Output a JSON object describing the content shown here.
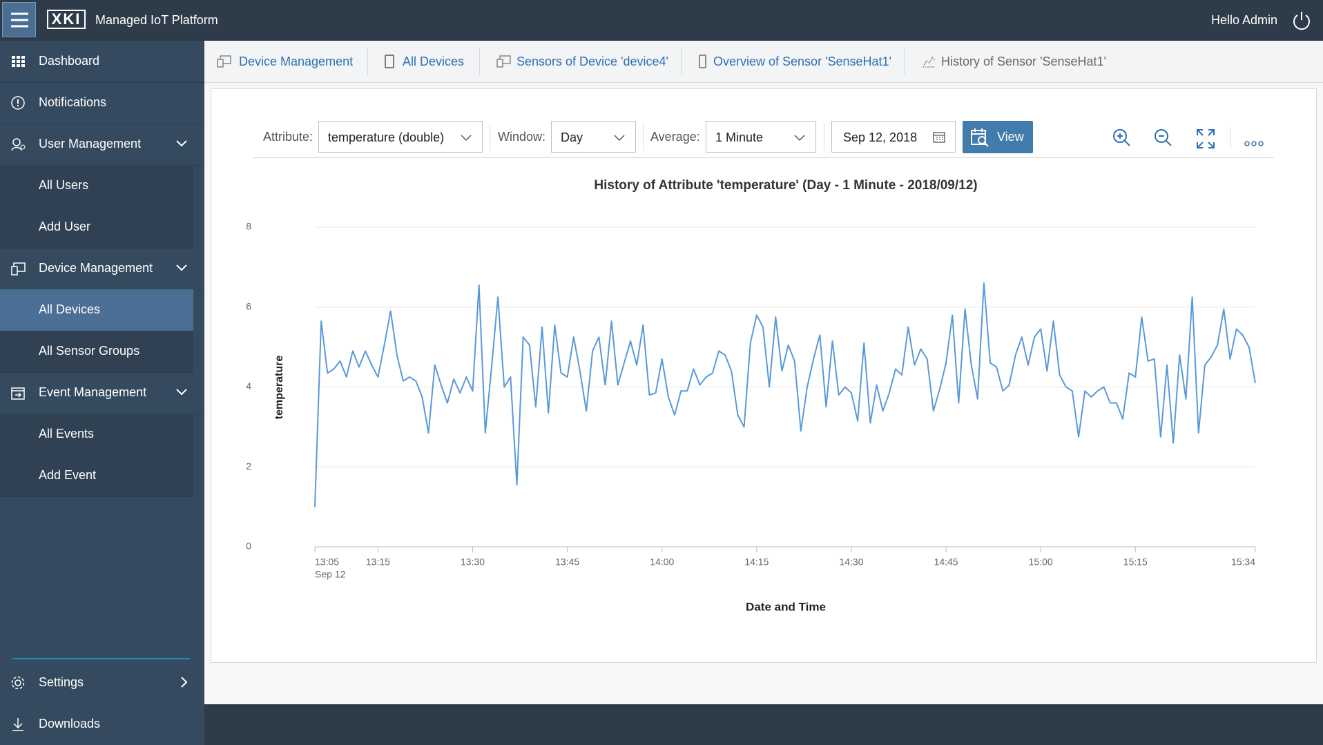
{
  "header": {
    "logo": "XKI",
    "title": "Managed IoT Platform",
    "greeting": "Hello Admin"
  },
  "sidebar": {
    "items": [
      "Dashboard",
      "Notifications",
      "User Management",
      "All Users",
      "Add User",
      "Device Management",
      "All Devices",
      "All Sensor Groups",
      "Event Management",
      "All Events",
      "Add Event"
    ],
    "footer": [
      "Settings",
      "Downloads"
    ]
  },
  "breadcrumbs": [
    "Device Management",
    "All Devices",
    "Sensors of Device 'device4'",
    "Overview of Sensor 'SenseHat1'",
    "History of Sensor 'SenseHat1'"
  ],
  "toolbar": {
    "attribute_label": "Attribute:",
    "attribute": "temperature (double)",
    "window_label": "Window:",
    "window": "Day",
    "average_label": "Average:",
    "average": "1 Minute",
    "date": "Sep 12, 2018",
    "button": "View"
  },
  "chart_data": {
    "type": "line",
    "title": "History of Attribute 'temperature' (Day - 1 Minute - 2018/09/12)",
    "x_label": "Date and Time",
    "y_label": "temperature",
    "color": "#5899da",
    "grid": true,
    "ylim": [
      0,
      8
    ],
    "yticks": [
      0,
      2,
      4,
      6,
      8
    ],
    "xticks": [
      "13:05",
      "13:15",
      "13:30",
      "13:45",
      "14:00",
      "14:15",
      "14:30",
      "14:45",
      "15:00",
      "15:15",
      "15:34"
    ],
    "x_date": "Sep 12",
    "x": [
      "13:05",
      "13:06",
      "13:07",
      "13:08",
      "13:09",
      "13:10",
      "13:11",
      "13:12",
      "13:13",
      "13:14",
      "13:15",
      "13:16",
      "13:17",
      "13:18",
      "13:19",
      "13:20",
      "13:21",
      "13:22",
      "13:23",
      "13:24",
      "13:25",
      "13:26",
      "13:27",
      "13:28",
      "13:29",
      "13:30",
      "13:31",
      "13:32",
      "13:33",
      "13:34",
      "13:35",
      "13:36",
      "13:37",
      "13:38",
      "13:39",
      "13:40",
      "13:41",
      "13:42",
      "13:43",
      "13:44",
      "13:45",
      "13:46",
      "13:47",
      "13:48",
      "13:49",
      "13:50",
      "13:51",
      "13:52",
      "13:53",
      "13:54",
      "13:55",
      "13:56",
      "13:57",
      "13:58",
      "13:59",
      "14:00",
      "14:01",
      "14:02",
      "14:03",
      "14:04",
      "14:05",
      "14:06",
      "14:07",
      "14:08",
      "14:09",
      "14:10",
      "14:11",
      "14:12",
      "14:13",
      "14:14",
      "14:15",
      "14:16",
      "14:17",
      "14:18",
      "14:19",
      "14:20",
      "14:21",
      "14:22",
      "14:23",
      "14:24",
      "14:25",
      "14:26",
      "14:27",
      "14:28",
      "14:29",
      "14:30",
      "14:31",
      "14:32",
      "14:33",
      "14:34",
      "14:35",
      "14:36",
      "14:37",
      "14:38",
      "14:39",
      "14:40",
      "14:41",
      "14:42",
      "14:43",
      "14:44",
      "14:45",
      "14:46",
      "14:47",
      "14:48",
      "14:49",
      "14:50",
      "14:51",
      "14:52",
      "14:53",
      "14:54",
      "14:55",
      "14:56",
      "14:57",
      "14:58",
      "14:59",
      "15:00",
      "15:01",
      "15:02",
      "15:03",
      "15:04",
      "15:05",
      "15:06",
      "15:07",
      "15:08",
      "15:09",
      "15:10",
      "15:11",
      "15:12",
      "15:13",
      "15:14",
      "15:15",
      "15:16",
      "15:17",
      "15:18",
      "15:19",
      "15:20",
      "15:21",
      "15:22",
      "15:23",
      "15:24",
      "15:25",
      "15:26",
      "15:27",
      "15:28",
      "15:29",
      "15:30",
      "15:31",
      "15:32",
      "15:33",
      "15:34"
    ],
    "values": [
      1.0,
      5.65,
      4.35,
      4.45,
      4.65,
      4.25,
      4.9,
      4.5,
      4.9,
      4.55,
      4.25,
      5.05,
      5.9,
      4.8,
      4.15,
      4.25,
      4.15,
      3.75,
      2.85,
      4.55,
      4.05,
      3.6,
      4.2,
      3.85,
      4.25,
      3.9,
      6.55,
      2.85,
      4.5,
      6.25,
      4.0,
      4.25,
      1.55,
      5.25,
      5.05,
      3.5,
      5.5,
      3.35,
      5.55,
      4.35,
      4.25,
      5.25,
      4.4,
      3.4,
      4.9,
      5.25,
      4.05,
      5.65,
      4.05,
      4.6,
      5.15,
      4.55,
      5.55,
      3.8,
      3.85,
      4.7,
      3.75,
      3.3,
      3.9,
      3.9,
      4.45,
      4.05,
      4.25,
      4.35,
      4.9,
      4.8,
      4.4,
      3.3,
      3.0,
      5.1,
      5.8,
      5.5,
      4.0,
      5.75,
      4.4,
      5.05,
      4.65,
      2.9,
      4.0,
      4.7,
      5.3,
      3.5,
      5.15,
      3.8,
      4.0,
      3.85,
      3.15,
      5.1,
      3.1,
      4.05,
      3.4,
      3.85,
      4.45,
      4.3,
      5.5,
      4.55,
      4.95,
      4.7,
      3.4,
      3.95,
      4.6,
      5.8,
      3.6,
      5.95,
      4.55,
      3.7,
      6.6,
      4.6,
      4.5,
      3.9,
      4.05,
      4.8,
      5.25,
      4.55,
      5.25,
      5.45,
      4.4,
      5.65,
      4.3,
      4.0,
      3.9,
      2.75,
      3.9,
      3.75,
      3.9,
      4.0,
      3.6,
      3.6,
      3.2,
      4.35,
      4.25,
      5.75,
      4.65,
      4.7,
      2.75,
      4.55,
      2.6,
      4.8,
      3.7,
      6.25,
      2.85,
      4.55,
      4.75,
      5.05,
      5.95,
      4.7,
      5.45,
      5.3,
      5.0,
      4.1
    ]
  }
}
